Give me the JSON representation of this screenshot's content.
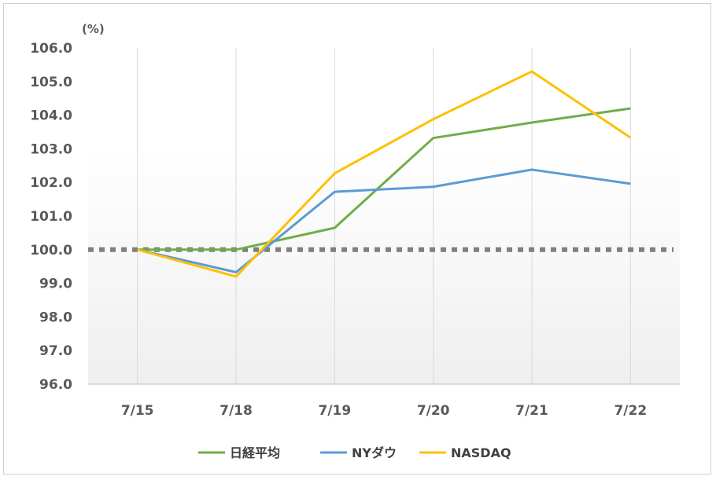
{
  "chart_data": {
    "type": "line",
    "unit_label": "(%)",
    "categories": [
      "7/15",
      "7/18",
      "7/19",
      "7/20",
      "7/21",
      "7/22"
    ],
    "ylim": [
      96.0,
      106.0
    ],
    "yticks": [
      "96.0",
      "97.0",
      "98.0",
      "99.0",
      "100.0",
      "101.0",
      "102.0",
      "103.0",
      "104.0",
      "105.0",
      "106.0"
    ],
    "reference_line": 100.0,
    "grid": "vertical",
    "legend_position": "bottom",
    "series": [
      {
        "name": "日経平均",
        "color": "#70ad47",
        "values": [
          100.0,
          100.0,
          100.65,
          103.32,
          103.78,
          104.2
        ]
      },
      {
        "name": "NYダウ",
        "color": "#5b9bd5",
        "values": [
          100.0,
          99.33,
          101.72,
          101.87,
          102.38,
          101.96
        ]
      },
      {
        "name": "NASDAQ",
        "color": "#ffc000",
        "values": [
          100.0,
          99.2,
          102.27,
          103.88,
          105.3,
          103.33
        ]
      }
    ],
    "reference_color": "#7f7f7f"
  }
}
